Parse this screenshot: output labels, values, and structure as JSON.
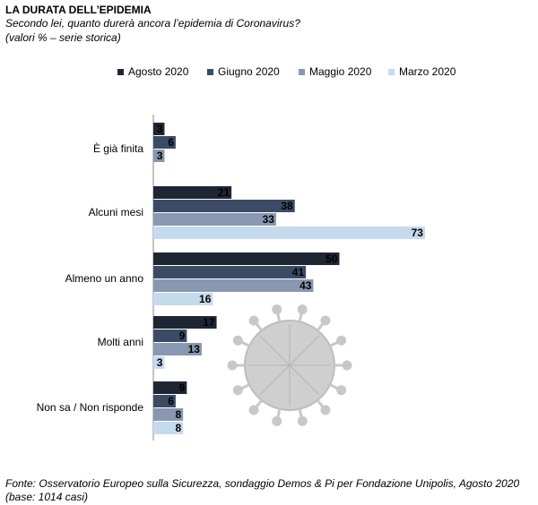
{
  "chart_data": {
    "type": "bar",
    "orientation": "horizontal",
    "title": "LA DURATA  DELL’EPIDEMIA",
    "subtitle": "Secondo lei, quanto durerà ancora l’epidemia di Coronavirus?",
    "note": "(valori % – serie storica)",
    "source": [
      "Fonte: Osservatorio Europeo sulla Sicurezza, sondaggio Demos & Pi per Fondazione Unipolis, Agosto 2020",
      "(base: 1014 casi)"
    ],
    "categories": [
      "È già finita",
      "Alcuni mesi",
      "Almeno un anno",
      "Molti anni",
      "Non sa / Non risponde"
    ],
    "series": [
      {
        "name": "Agosto 2020",
        "color": "#1f2633",
        "values": [
          3,
          21,
          50,
          17,
          9
        ]
      },
      {
        "name": "Giugno 2020",
        "color": "#3b4b64",
        "values": [
          6,
          38,
          41,
          9,
          6
        ]
      },
      {
        "name": "Maggio 2020",
        "color": "#8998b0",
        "values": [
          3,
          33,
          43,
          13,
          8
        ]
      },
      {
        "name": "Marzo 2020",
        "color": "#c6daee",
        "values": [
          null,
          73,
          16,
          3,
          8
        ]
      }
    ],
    "legend": "top"
  }
}
